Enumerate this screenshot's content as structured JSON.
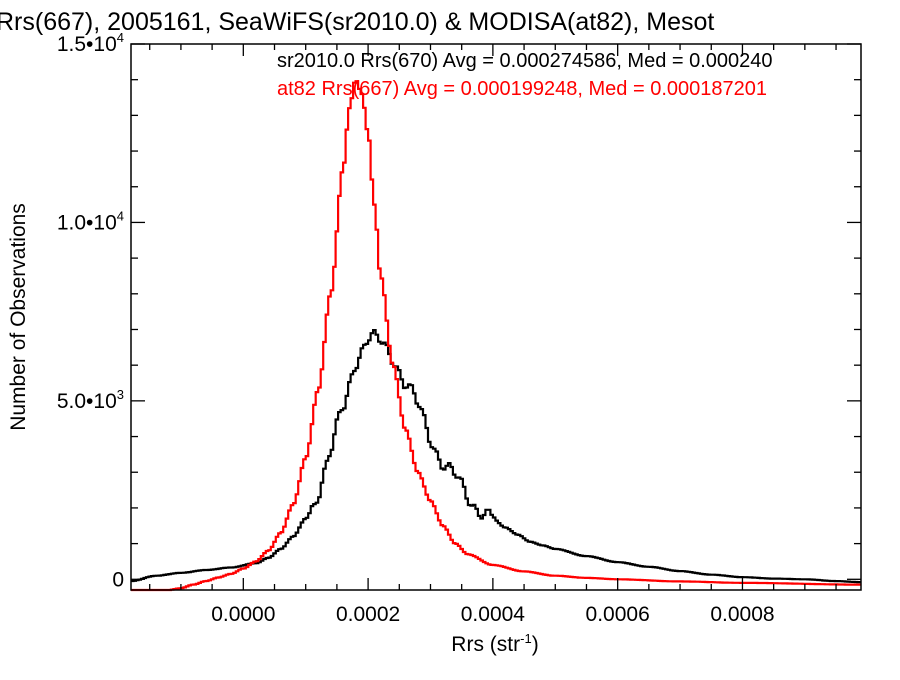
{
  "chart_data": {
    "type": "line",
    "step": true,
    "title": "Rrs(667), 2005161, SeaWiFS(sr2010.0) & MODISA(at82), Mesot",
    "xlabel": {
      "base": "Rrs (str",
      "sup": "-1",
      "close": ")"
    },
    "ylabel": "Number of Observations",
    "xlim": [
      -0.00018,
      0.00099
    ],
    "ylim": [
      -300,
      15000
    ],
    "x_ticks": [
      {
        "value": 0.0,
        "label": "0.0000"
      },
      {
        "value": 0.0002,
        "label": "0.0002"
      },
      {
        "value": 0.0004,
        "label": "0.0004"
      },
      {
        "value": 0.0006,
        "label": "0.0006"
      },
      {
        "value": 0.0008,
        "label": "0.0008"
      }
    ],
    "y_ticks": [
      {
        "value": 0,
        "mantissa": "0",
        "exp": ""
      },
      {
        "value": 5000,
        "mantissa": "5.0•10",
        "exp": "3"
      },
      {
        "value": 10000,
        "mantissa": "1.0•10",
        "exp": "4"
      },
      {
        "value": 15000,
        "mantissa": "1.5•10",
        "exp": "4"
      }
    ],
    "legend": [
      {
        "text": "sr2010.0 Rrs(670) Avg = 0.000274586, Med = 0.000240",
        "color": "#000000"
      },
      {
        "text": "at82 Rrs(667) Avg = 0.000199248, Med = 0.000187201",
        "color": "#ff0000"
      }
    ],
    "legend_position": "top-right",
    "series": [
      {
        "name": "sr2010.0 Rrs(670)",
        "color": "#000000",
        "x": [
          -0.00018,
          -0.00014,
          -0.0001,
          -6e-05,
          -2e-05,
          2e-05,
          4e-05,
          6e-05,
          8e-05,
          0.0001,
          0.00012,
          0.00014,
          0.00016,
          0.00018,
          0.0002,
          0.00022,
          0.00024,
          0.00026,
          0.00028,
          0.0003,
          0.00032,
          0.00034,
          0.00036,
          0.00038,
          0.0004,
          0.00042,
          0.00044,
          0.00046,
          0.00048,
          0.0005,
          0.00055,
          0.0006,
          0.00065,
          0.0007,
          0.00075,
          0.0008,
          0.00085,
          0.0009,
          0.00095,
          0.00099
        ],
        "y": [
          -50,
          100,
          180,
          260,
          330,
          450,
          600,
          850,
          1200,
          1700,
          2500,
          3500,
          4800,
          6200,
          6700,
          6600,
          6300,
          5500,
          4800,
          4000,
          3300,
          2800,
          2300,
          2000,
          1700,
          1450,
          1250,
          1050,
          950,
          850,
          650,
          480,
          350,
          230,
          130,
          60,
          20,
          0,
          -50,
          -80
        ]
      },
      {
        "name": "at82 Rrs(667)",
        "color": "#ff0000",
        "x": [
          -0.00018,
          -0.00012,
          -0.0001,
          -8e-05,
          -6e-05,
          -4e-05,
          -2e-05,
          0.0,
          2e-05,
          4e-05,
          6e-05,
          8e-05,
          0.0001,
          0.00012,
          0.00014,
          0.00016,
          0.00017,
          0.00018,
          0.00019,
          0.0002,
          0.00021,
          0.00022,
          0.00024,
          0.00026,
          0.00028,
          0.0003,
          0.00032,
          0.00034,
          0.00036,
          0.0004,
          0.00045,
          0.0005,
          0.00055,
          0.0006,
          0.0007,
          0.0008,
          0.00099
        ],
        "y": [
          -300,
          -300,
          -250,
          -150,
          -50,
          50,
          150,
          300,
          500,
          800,
          1300,
          2100,
          3400,
          5300,
          8000,
          11500,
          13200,
          14000,
          13600,
          12500,
          10500,
          8500,
          6000,
          4200,
          3000,
          2200,
          1500,
          1000,
          700,
          400,
          220,
          100,
          40,
          0,
          -60,
          -100,
          -150
        ]
      }
    ]
  }
}
